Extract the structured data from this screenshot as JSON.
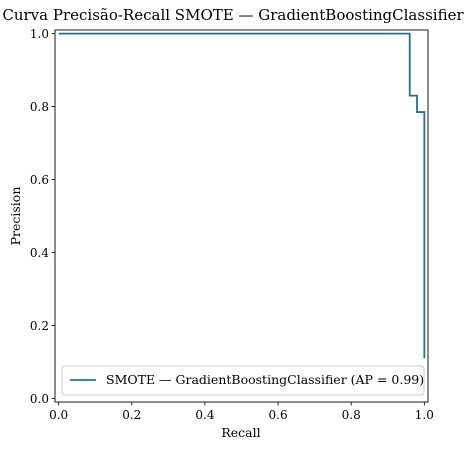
{
  "chart_data": {
    "type": "line",
    "title": "Curva Precisão-Recall SMOTE — GradientBoostingClassifier",
    "xlabel": "Recall",
    "ylabel": "Precision",
    "xlim": [
      -0.01,
      1.01
    ],
    "ylim": [
      -0.01,
      1.01
    ],
    "xticks": [
      0.0,
      0.2,
      0.4,
      0.6,
      0.8,
      1.0
    ],
    "yticks": [
      0.0,
      0.2,
      0.4,
      0.6,
      0.8,
      1.0
    ],
    "xtick_labels": [
      "0.0",
      "0.2",
      "0.4",
      "0.6",
      "0.8",
      "1.0"
    ],
    "ytick_labels": [
      "0.0",
      "0.2",
      "0.4",
      "0.6",
      "0.8",
      "1.0"
    ],
    "grid": false,
    "legend_position": "lower-right",
    "series": [
      {
        "name": "SMOTE — GradientBoostingClassifier (AP = 0.99)",
        "color": "#1f6f9e",
        "drawstyle": "steps-post",
        "x": [
          0.0,
          0.96,
          0.96,
          0.98,
          0.98,
          1.0,
          1.0
        ],
        "y": [
          1.0,
          1.0,
          0.83,
          0.83,
          0.785,
          0.785,
          0.11
        ]
      }
    ]
  }
}
